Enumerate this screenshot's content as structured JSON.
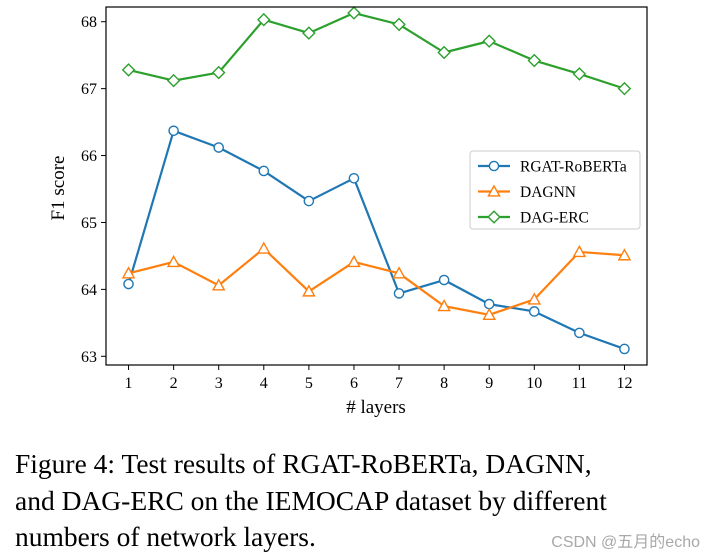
{
  "chart_data": {
    "type": "line",
    "title": "",
    "xlabel": "# layers",
    "ylabel": "F1 score",
    "x": [
      1,
      2,
      3,
      4,
      5,
      6,
      7,
      8,
      9,
      10,
      11,
      12
    ],
    "xlim": [
      0.5,
      12.5
    ],
    "ylim": [
      62.87,
      68.22
    ],
    "yticks": [
      63,
      64,
      65,
      66,
      67,
      68
    ],
    "grid": false,
    "legend_position": "center-right",
    "series": [
      {
        "name": "RGAT-RoBERTa",
        "color": "#1f77b4",
        "marker": "circle",
        "values": [
          64.08,
          66.37,
          66.12,
          65.77,
          65.32,
          65.66,
          63.94,
          64.14,
          63.78,
          63.67,
          63.35,
          63.11
        ]
      },
      {
        "name": "DAGNN",
        "color": "#ff7f0e",
        "marker": "triangle",
        "values": [
          64.24,
          64.41,
          64.06,
          64.61,
          63.97,
          64.41,
          64.24,
          63.75,
          63.62,
          63.85,
          64.56,
          64.51
        ]
      },
      {
        "name": "DAG-ERC",
        "color": "#2ca02c",
        "marker": "diamond",
        "values": [
          67.28,
          67.12,
          67.24,
          68.03,
          67.83,
          68.13,
          67.96,
          67.54,
          67.71,
          67.42,
          67.22,
          67.0
        ]
      }
    ]
  },
  "caption": {
    "lines": [
      "Figure 4:  Test results of RGAT-RoBERTa, DAGNN,",
      "and DAG-ERC on the IEMOCAP dataset by different",
      "numbers of network layers."
    ]
  },
  "watermark": "CSDN @五月的echo"
}
